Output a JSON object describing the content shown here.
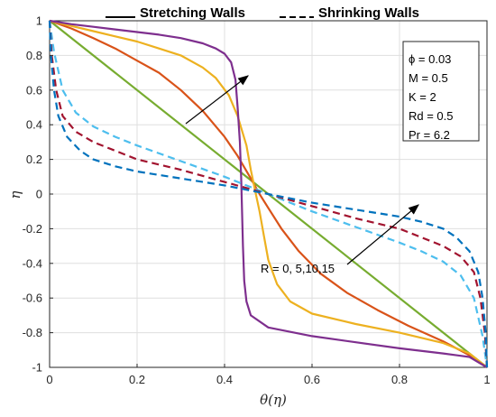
{
  "chart_data": {
    "type": "line",
    "xlabel": "θ(η)",
    "ylabel": "η",
    "xlim": [
      0,
      1
    ],
    "ylim": [
      -1,
      1
    ],
    "x_ticks": [
      "0",
      "0.2",
      "0.4",
      "0.6",
      "0.8",
      "1"
    ],
    "y_ticks": [
      "1",
      "0.8",
      "0.6",
      "0.4",
      "0.2",
      "0",
      "-0.2",
      "-0.4",
      "-0.6",
      "-0.8",
      "-1"
    ],
    "grid": true,
    "legend": {
      "stretching": "Stretching Walls",
      "shrinking": "Shrinking Walls",
      "placement": "top, outside plot"
    },
    "parameters": [
      "ϕ = 0.03",
      "M = 0.5",
      "K = 2",
      "Rd = 0.5",
      "Pr = 6.2"
    ],
    "annotation": "R = 0, 5,10,15",
    "colors": {
      "R0": "#77ac30",
      "R5": "#d95319",
      "R10": "#edb120",
      "R15": "#7e2f8e",
      "shr5": "#4dbeee",
      "shr10": "#a2142f",
      "shr15": "#0072bd"
    },
    "series": [
      {
        "wall": "stretching",
        "dash": "solid",
        "color_key": "R0",
        "points": [
          [
            0,
            1
          ],
          [
            1,
            -1
          ]
        ]
      },
      {
        "wall": "stretching",
        "dash": "solid",
        "color_key": "R5",
        "points": [
          [
            0,
            1
          ],
          [
            0.05,
            0.955
          ],
          [
            0.1,
            0.9
          ],
          [
            0.15,
            0.84
          ],
          [
            0.2,
            0.77
          ],
          [
            0.25,
            0.7
          ],
          [
            0.3,
            0.6
          ],
          [
            0.35,
            0.48
          ],
          [
            0.4,
            0.33
          ],
          [
            0.43,
            0.22
          ],
          [
            0.46,
            0.09
          ],
          [
            0.48,
            0.0
          ],
          [
            0.5,
            -0.08
          ],
          [
            0.53,
            -0.2
          ],
          [
            0.57,
            -0.33
          ],
          [
            0.62,
            -0.46
          ],
          [
            0.68,
            -0.57
          ],
          [
            0.75,
            -0.67
          ],
          [
            0.82,
            -0.76
          ],
          [
            0.9,
            -0.85
          ],
          [
            0.96,
            -0.93
          ],
          [
            1,
            -1
          ]
        ]
      },
      {
        "wall": "stretching",
        "dash": "solid",
        "color_key": "R10",
        "points": [
          [
            0,
            1
          ],
          [
            0.05,
            0.97
          ],
          [
            0.1,
            0.94
          ],
          [
            0.15,
            0.91
          ],
          [
            0.2,
            0.88
          ],
          [
            0.25,
            0.84
          ],
          [
            0.3,
            0.8
          ],
          [
            0.35,
            0.73
          ],
          [
            0.38,
            0.67
          ],
          [
            0.41,
            0.57
          ],
          [
            0.43,
            0.45
          ],
          [
            0.45,
            0.28
          ],
          [
            0.46,
            0.14
          ],
          [
            0.47,
            0.02
          ],
          [
            0.48,
            -0.1
          ],
          [
            0.49,
            -0.24
          ],
          [
            0.5,
            -0.38
          ],
          [
            0.52,
            -0.52
          ],
          [
            0.55,
            -0.62
          ],
          [
            0.6,
            -0.69
          ],
          [
            0.7,
            -0.75
          ],
          [
            0.8,
            -0.8
          ],
          [
            0.9,
            -0.86
          ],
          [
            0.96,
            -0.92
          ],
          [
            1,
            -1
          ]
        ]
      },
      {
        "wall": "stretching",
        "dash": "solid",
        "color_key": "R15",
        "points": [
          [
            0,
            1
          ],
          [
            0.05,
            0.98
          ],
          [
            0.1,
            0.965
          ],
          [
            0.15,
            0.95
          ],
          [
            0.2,
            0.935
          ],
          [
            0.25,
            0.92
          ],
          [
            0.3,
            0.9
          ],
          [
            0.35,
            0.87
          ],
          [
            0.38,
            0.84
          ],
          [
            0.4,
            0.81
          ],
          [
            0.415,
            0.76
          ],
          [
            0.425,
            0.66
          ],
          [
            0.43,
            0.5
          ],
          [
            0.435,
            0.3
          ],
          [
            0.438,
            0.1
          ],
          [
            0.44,
            -0.1
          ],
          [
            0.442,
            -0.3
          ],
          [
            0.445,
            -0.5
          ],
          [
            0.45,
            -0.62
          ],
          [
            0.46,
            -0.7
          ],
          [
            0.5,
            -0.77
          ],
          [
            0.6,
            -0.82
          ],
          [
            0.7,
            -0.855
          ],
          [
            0.8,
            -0.89
          ],
          [
            0.9,
            -0.92
          ],
          [
            0.96,
            -0.94
          ],
          [
            1,
            -1
          ]
        ]
      },
      {
        "wall": "shrinking",
        "dash": "dashed",
        "color_key": "shr5",
        "points": [
          [
            0,
            1
          ],
          [
            0.01,
            0.82
          ],
          [
            0.03,
            0.6
          ],
          [
            0.06,
            0.47
          ],
          [
            0.1,
            0.39
          ],
          [
            0.15,
            0.33
          ],
          [
            0.2,
            0.28
          ],
          [
            0.3,
            0.19
          ],
          [
            0.4,
            0.1
          ],
          [
            0.5,
            0.0
          ],
          [
            0.6,
            -0.1
          ],
          [
            0.7,
            -0.19
          ],
          [
            0.8,
            -0.28
          ],
          [
            0.85,
            -0.33
          ],
          [
            0.9,
            -0.39
          ],
          [
            0.94,
            -0.47
          ],
          [
            0.97,
            -0.6
          ],
          [
            0.99,
            -0.82
          ],
          [
            1,
            -1
          ]
        ]
      },
      {
        "wall": "shrinking",
        "dash": "dashed",
        "color_key": "shr10",
        "points": [
          [
            0,
            1
          ],
          [
            0.005,
            0.8
          ],
          [
            0.015,
            0.6
          ],
          [
            0.03,
            0.45
          ],
          [
            0.06,
            0.36
          ],
          [
            0.1,
            0.3
          ],
          [
            0.15,
            0.25
          ],
          [
            0.2,
            0.2
          ],
          [
            0.3,
            0.14
          ],
          [
            0.4,
            0.07
          ],
          [
            0.5,
            0.0
          ],
          [
            0.6,
            -0.07
          ],
          [
            0.7,
            -0.14
          ],
          [
            0.8,
            -0.2
          ],
          [
            0.85,
            -0.25
          ],
          [
            0.9,
            -0.3
          ],
          [
            0.94,
            -0.36
          ],
          [
            0.97,
            -0.45
          ],
          [
            0.985,
            -0.6
          ],
          [
            0.995,
            -0.8
          ],
          [
            1,
            -1
          ]
        ]
      },
      {
        "wall": "shrinking",
        "dash": "dashed",
        "color_key": "shr15",
        "points": [
          [
            0,
            1
          ],
          [
            0.003,
            0.8
          ],
          [
            0.01,
            0.6
          ],
          [
            0.02,
            0.45
          ],
          [
            0.04,
            0.33
          ],
          [
            0.07,
            0.25
          ],
          [
            0.1,
            0.2
          ],
          [
            0.15,
            0.16
          ],
          [
            0.2,
            0.13
          ],
          [
            0.3,
            0.09
          ],
          [
            0.4,
            0.05
          ],
          [
            0.5,
            0.0
          ],
          [
            0.6,
            -0.05
          ],
          [
            0.7,
            -0.09
          ],
          [
            0.8,
            -0.13
          ],
          [
            0.85,
            -0.16
          ],
          [
            0.9,
            -0.2
          ],
          [
            0.93,
            -0.25
          ],
          [
            0.96,
            -0.33
          ],
          [
            0.98,
            -0.45
          ],
          [
            0.99,
            -0.6
          ],
          [
            0.997,
            -0.8
          ],
          [
            1,
            -1
          ]
        ]
      }
    ]
  }
}
